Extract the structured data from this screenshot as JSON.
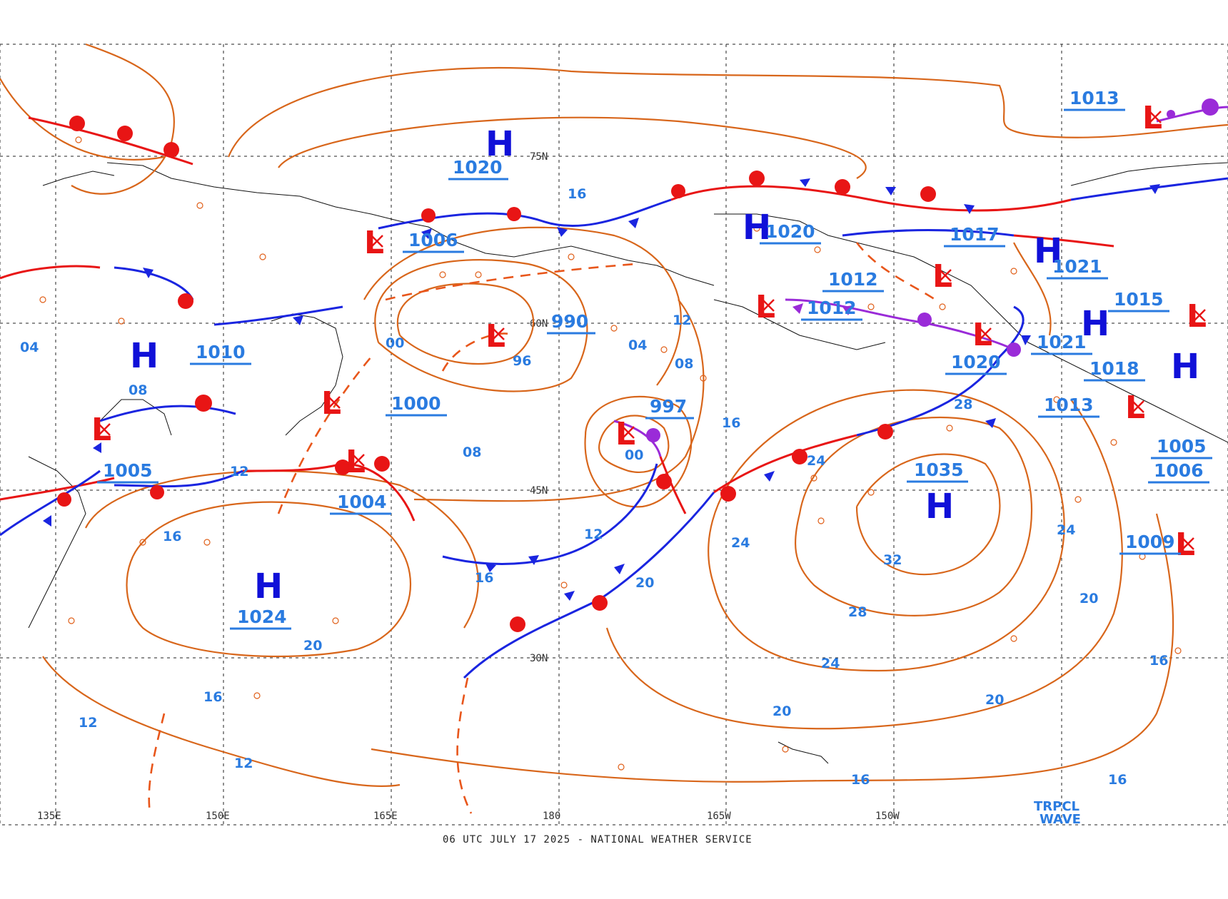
{
  "title": "",
  "footer": "06 UTC JULY 17 2025 - NATIONAL WEATHER SERVICE",
  "colors": {
    "isobar": "#d8661b",
    "isobar_label": "#2a7be0",
    "high": "#1010d8",
    "low": "#e81515",
    "cold_front": "#1a25e0",
    "warm_front": "#e81515",
    "occluded_front": "#9a2bd8"
  },
  "longitude_labels": [
    "135E",
    "150E",
    "165E",
    "180",
    "165W",
    "150W"
  ],
  "latitude_labels": [
    "75N",
    "60N",
    "45N",
    "30N"
  ],
  "highs": [
    {
      "symbol": "H",
      "pressure": "1020"
    },
    {
      "symbol": "H",
      "pressure": "1010"
    },
    {
      "symbol": "H",
      "pressure": "1024"
    },
    {
      "symbol": "H",
      "pressure": "1035"
    },
    {
      "symbol": "H",
      "pressure": "1020"
    },
    {
      "symbol": "H",
      "pressure": "1021"
    },
    {
      "symbol": "H",
      "pressure": "1021"
    },
    {
      "symbol": "H",
      "pressure": "1018"
    }
  ],
  "lows": [
    {
      "symbol": "L",
      "pressure": "1006"
    },
    {
      "symbol": "L",
      "pressure": "990"
    },
    {
      "symbol": "L",
      "pressure": "1000"
    },
    {
      "symbol": "L",
      "pressure": "997"
    },
    {
      "symbol": "L",
      "pressure": "1004"
    },
    {
      "symbol": "L",
      "pressure": "1005"
    },
    {
      "symbol": "L",
      "pressure": "1012"
    },
    {
      "symbol": "L",
      "pressure": "1012"
    },
    {
      "symbol": "L",
      "pressure": "1017"
    },
    {
      "symbol": "L",
      "pressure": "1020"
    },
    {
      "symbol": "L",
      "pressure": "1013"
    },
    {
      "symbol": "L",
      "pressure": "1013"
    },
    {
      "symbol": "L",
      "pressure": "1015"
    },
    {
      "symbol": "L",
      "pressure": "1005"
    },
    {
      "symbol": "L",
      "pressure": "1006"
    },
    {
      "symbol": "L",
      "pressure": "1009"
    }
  ],
  "isobar_labels": [
    "00",
    "04",
    "08",
    "12",
    "16",
    "20",
    "24",
    "28",
    "32",
    "96",
    "16",
    "20",
    "24",
    "16",
    "12",
    "20",
    "16",
    "12",
    "08",
    "04",
    "00",
    "08",
    "12",
    "16",
    "20",
    "24",
    "16",
    "12",
    "20",
    "24",
    "28",
    "16",
    "16"
  ],
  "annotations": {
    "tropical_wave": [
      "TRPCL",
      "WAVE"
    ]
  }
}
